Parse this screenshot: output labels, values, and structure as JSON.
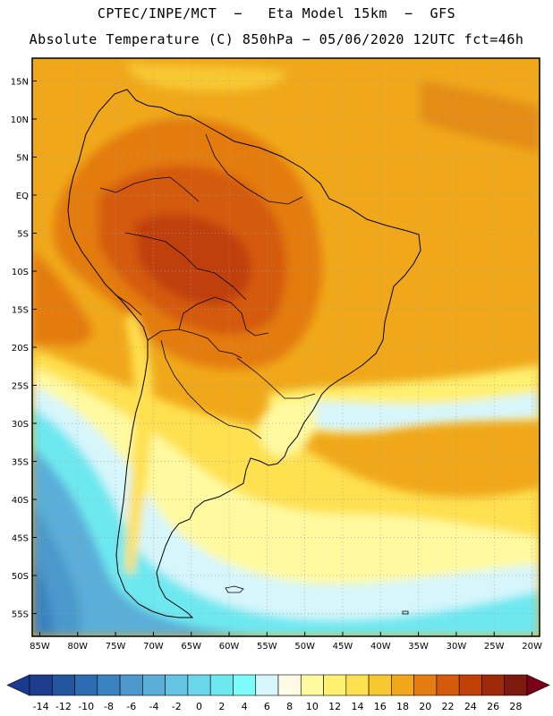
{
  "title": {
    "line1": "CPTEC/INPE/MCT  −   Eta Model 15km  −  GFS",
    "line2": "Absolute Temperature (C) 850hPa − 05/06/2020 12UTC fct=46h"
  },
  "map": {
    "lat_range": [
      -58,
      18
    ],
    "lon_range": [
      -86,
      -19
    ],
    "lat_ticks": [
      {
        "value": 15,
        "label": "15N"
      },
      {
        "value": 10,
        "label": "10N"
      },
      {
        "value": 5,
        "label": "5N"
      },
      {
        "value": 0,
        "label": "EQ"
      },
      {
        "value": -5,
        "label": "5S"
      },
      {
        "value": -10,
        "label": "10S"
      },
      {
        "value": -15,
        "label": "15S"
      },
      {
        "value": -20,
        "label": "20S"
      },
      {
        "value": -25,
        "label": "25S"
      },
      {
        "value": -30,
        "label": "30S"
      },
      {
        "value": -35,
        "label": "35S"
      },
      {
        "value": -40,
        "label": "40S"
      },
      {
        "value": -45,
        "label": "45S"
      },
      {
        "value": -50,
        "label": "50S"
      },
      {
        "value": -55,
        "label": "55S"
      }
    ],
    "lon_ticks": [
      {
        "value": -85,
        "label": "85W"
      },
      {
        "value": -80,
        "label": "80W"
      },
      {
        "value": -75,
        "label": "75W"
      },
      {
        "value": -70,
        "label": "70W"
      },
      {
        "value": -65,
        "label": "65W"
      },
      {
        "value": -60,
        "label": "60W"
      },
      {
        "value": -55,
        "label": "55W"
      },
      {
        "value": -50,
        "label": "50W"
      },
      {
        "value": -45,
        "label": "45W"
      },
      {
        "value": -40,
        "label": "40W"
      },
      {
        "value": -35,
        "label": "35W"
      },
      {
        "value": -30,
        "label": "30W"
      },
      {
        "value": -25,
        "label": "25W"
      },
      {
        "value": -20,
        "label": "20W"
      }
    ]
  },
  "colorbar": {
    "labels": [
      "-14",
      "-12",
      "-10",
      "-8",
      "-6",
      "-4",
      "-2",
      "0",
      "2",
      "4",
      "6",
      "8",
      "10",
      "12",
      "14",
      "16",
      "18",
      "20",
      "22",
      "24",
      "26",
      "28"
    ],
    "low_color": "#1a3a8f",
    "high_color": "#7a0018",
    "colors": [
      "#1e3c8c",
      "#2456a0",
      "#2c6cb0",
      "#3a82c0",
      "#4c98cc",
      "#5aaed8",
      "#64c4e2",
      "#6cd6ea",
      "#6ee8f0",
      "#7efcfc",
      "#d6f6fc",
      "#fffae6",
      "#fffaa0",
      "#fff070",
      "#ffe050",
      "#f8c830",
      "#f0a81a",
      "#e47c10",
      "#d45a0c",
      "#c04008",
      "#9e2a0a",
      "#7c1a10"
    ]
  },
  "colors": {
    "land_outline": "#000000",
    "grid": "#a0a0a0"
  }
}
